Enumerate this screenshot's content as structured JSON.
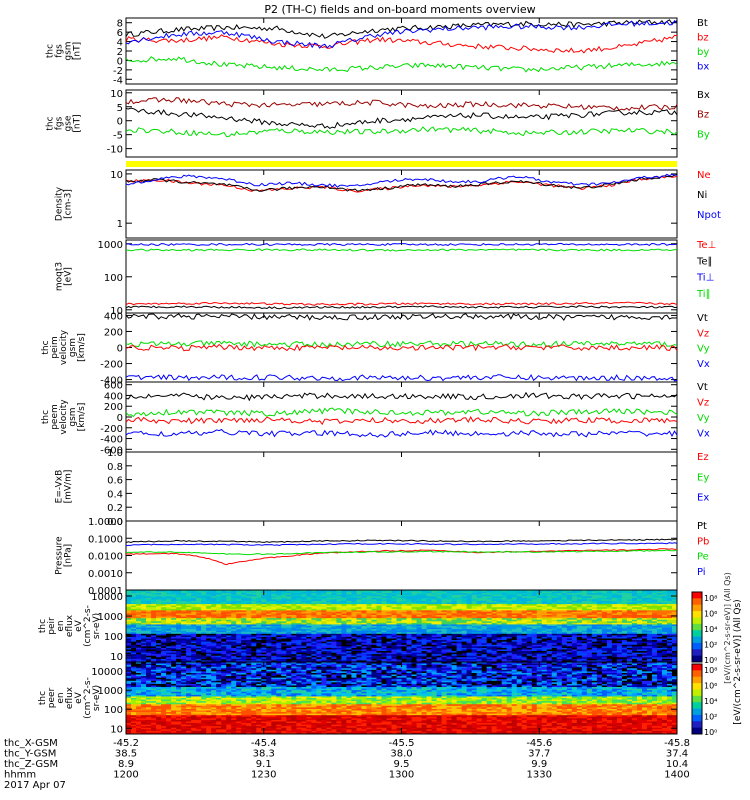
{
  "title": "P2 (TH-C) fields and on-board moments overview",
  "colors": {
    "black": "#000000",
    "red": "#ff0000",
    "green": "#00dd00",
    "blue": "#0000ff",
    "darkred": "#990000",
    "yellow": "#ffff00"
  },
  "chart_data": [
    {
      "type": "line",
      "ylabel": [
        "thc",
        "fgs",
        "gsm",
        "[nT]"
      ],
      "ylim": [
        -5,
        9
      ],
      "ticks": [
        "8",
        "6",
        "4",
        "2",
        "0",
        "-2",
        "-4"
      ],
      "tick_values": [
        8,
        6,
        4,
        2,
        0,
        -2,
        -4
      ],
      "legend": [
        "Bt",
        "bz",
        "by",
        "bx"
      ],
      "legend_colors": [
        "black",
        "red",
        "green",
        "blue"
      ],
      "series": [
        {
          "color": "black",
          "values": [
            5.5,
            6.5,
            7,
            6.8,
            5,
            6.5,
            7,
            7.5,
            7.8,
            7.6,
            8,
            8.2
          ]
        },
        {
          "color": "red",
          "values": [
            4.5,
            4.2,
            5,
            3.5,
            3,
            4.5,
            3.8,
            3,
            2.5,
            2,
            3,
            5
          ]
        },
        {
          "color": "green",
          "values": [
            0,
            0.5,
            -1,
            -1.5,
            -2,
            -1.5,
            -1,
            -1.5,
            -2,
            -1.5,
            -1,
            -0.5
          ]
        },
        {
          "color": "blue",
          "values": [
            4,
            5.5,
            6,
            4,
            3,
            5.5,
            6.5,
            7,
            7.2,
            7,
            7.8,
            8
          ]
        }
      ]
    },
    {
      "type": "line",
      "ylabel": [
        "thc",
        "fgs",
        "gse",
        "[nT]"
      ],
      "ylim": [
        -13,
        11
      ],
      "ticks": [
        "10",
        "5",
        "0",
        "-5",
        "-10"
      ],
      "tick_values": [
        10,
        5,
        0,
        -5,
        -10
      ],
      "legend": [
        "Bx",
        "Bz",
        "By"
      ],
      "legend_colors": [
        "black",
        "darkred",
        "green"
      ],
      "series": [
        {
          "color": "black",
          "values": [
            4,
            2.5,
            1,
            -1,
            -2,
            0,
            1,
            2,
            1,
            2,
            3,
            3
          ]
        },
        {
          "color": "darkred",
          "values": [
            7,
            7.5,
            6,
            5.5,
            6,
            6.5,
            5,
            6,
            5.5,
            5,
            4.5,
            5
          ]
        },
        {
          "color": "green",
          "values": [
            -3,
            -4,
            -5,
            -3.5,
            -4,
            -4,
            -3,
            -3.5,
            -4.5,
            -4,
            -3.5,
            -4
          ]
        }
      ]
    },
    {
      "type": "line",
      "scale": "log",
      "ylabel": [
        "Density",
        "[cm-3]"
      ],
      "ylim": [
        0.5,
        12
      ],
      "ticks": [
        "10",
        "1"
      ],
      "tick_values": [
        10,
        1
      ],
      "legend": [
        "Ne",
        "Ni",
        "Npot"
      ],
      "legend_colors": [
        "red",
        "black",
        "blue"
      ],
      "series": [
        {
          "color": "red",
          "values": [
            7,
            7.5,
            6.5,
            6,
            4.5,
            5,
            5.5,
            4.5,
            5,
            6,
            5.5,
            6,
            7,
            6,
            5,
            6,
            8,
            9
          ]
        },
        {
          "color": "black",
          "values": [
            7,
            7.6,
            6.6,
            6.1,
            4.6,
            5.1,
            5.6,
            4.6,
            5.1,
            6.1,
            5.6,
            6.1,
            7.1,
            6.1,
            5.1,
            6.1,
            8.1,
            9.1
          ]
        },
        {
          "color": "blue",
          "values": [
            6,
            8,
            9,
            8,
            6,
            6.5,
            6,
            5.5,
            7,
            8,
            7,
            7,
            9,
            7,
            6,
            6.5,
            8.5,
            9.5
          ]
        }
      ]
    },
    {
      "type": "line",
      "scale": "log",
      "ylabel": [
        "moqt3",
        "[eV]"
      ],
      "ylim": [
        8,
        1300
      ],
      "ticks": [
        "1000",
        "100",
        "10"
      ],
      "tick_values": [
        1000,
        100,
        10
      ],
      "legend": [
        "Te⊥",
        "Te∥",
        "Ti⊥",
        "Ti∥"
      ],
      "legend_colors": [
        "red",
        "black",
        "blue",
        "green"
      ],
      "series": [
        {
          "color": "blue",
          "values": [
            950,
            950,
            960,
            950,
            950,
            955,
            950,
            950,
            960,
            955,
            950,
            955
          ]
        },
        {
          "color": "green",
          "values": [
            650,
            640,
            650,
            660,
            650,
            640,
            650,
            655,
            650,
            645,
            650,
            650
          ]
        },
        {
          "color": "red",
          "values": [
            15,
            15.5,
            16,
            15,
            14.5,
            15,
            15.5,
            15,
            15,
            15.5,
            16,
            15
          ]
        },
        {
          "color": "black",
          "values": [
            12,
            12.5,
            12,
            11.5,
            12,
            12,
            12.5,
            12,
            12,
            12.5,
            12,
            12
          ]
        }
      ]
    },
    {
      "type": "line",
      "ylabel": [
        "thc",
        "peim",
        "velocity",
        "gsm",
        "[km/s]"
      ],
      "ylim": [
        -430,
        430
      ],
      "ticks": [
        "400",
        "200",
        "0",
        "-200",
        "-400"
      ],
      "tick_values": [
        400,
        200,
        0,
        -200,
        -400
      ],
      "legend": [
        "Vt",
        "Vz",
        "Vy",
        "Vx"
      ],
      "legend_colors": [
        "black",
        "red",
        "green",
        "blue"
      ],
      "series": [
        {
          "color": "black",
          "values": [
            380,
            390,
            385,
            380,
            375,
            380,
            385,
            390,
            380,
            375,
            380,
            385
          ]
        },
        {
          "color": "green",
          "values": [
            40,
            45,
            50,
            40,
            35,
            45,
            50,
            45,
            40,
            45,
            50,
            40
          ]
        },
        {
          "color": "red",
          "values": [
            0,
            -10,
            5,
            -5,
            0,
            -10,
            -5,
            0,
            5,
            -5,
            0,
            -5
          ]
        },
        {
          "color": "blue",
          "values": [
            -370,
            -380,
            -375,
            -370,
            -380,
            -375,
            -380,
            -370,
            -375,
            -380,
            -375,
            -385
          ]
        }
      ]
    },
    {
      "type": "line",
      "ylabel": [
        "thc",
        "peem",
        "velocity",
        "gsm",
        "[km/s]"
      ],
      "ylim": [
        -650,
        650
      ],
      "ticks": [
        "600",
        "400",
        "200",
        "0",
        "-200",
        "-400",
        "-600"
      ],
      "tick_values": [
        600,
        400,
        200,
        0,
        -200,
        -400,
        -600
      ],
      "legend": [
        "Vt",
        "Vz",
        "Vy",
        "Vx"
      ],
      "legend_colors": [
        "black",
        "red",
        "green",
        "blue"
      ],
      "series": [
        {
          "color": "black",
          "values": [
            380,
            400,
            350,
            380,
            400,
            380,
            390,
            370,
            400,
            380,
            390,
            380
          ]
        },
        {
          "color": "green",
          "values": [
            50,
            100,
            80,
            60,
            120,
            90,
            80,
            100,
            70,
            90,
            110,
            80
          ]
        },
        {
          "color": "red",
          "values": [
            -50,
            -80,
            -60,
            -40,
            -90,
            -60,
            -70,
            -50,
            -80,
            -60,
            -70,
            -60
          ]
        },
        {
          "color": "blue",
          "values": [
            -300,
            -320,
            -280,
            -310,
            -300,
            -330,
            -290,
            -310,
            -300,
            -320,
            -300,
            -310
          ]
        }
      ]
    },
    {
      "type": "line",
      "ylabel": [
        "E=-VxB",
        "[mV/m]"
      ],
      "ylim": [
        0,
        1
      ],
      "ticks": [
        "1.0",
        "0.8",
        "0.6",
        "0.4",
        "0.2",
        "0.0"
      ],
      "tick_values": [
        1,
        0.8,
        0.6,
        0.4,
        0.2,
        0
      ],
      "legend": [
        "Ez",
        "Ey",
        "Ex"
      ],
      "legend_colors": [
        "red",
        "green",
        "blue"
      ],
      "series": []
    },
    {
      "type": "line",
      "scale": "log",
      "ylabel": [
        "Pressure",
        "[nPa]"
      ],
      "ylim": [
        0.0001,
        1
      ],
      "ticks": [
        "1.0000",
        "0.1000",
        "0.0100",
        "0.0010",
        "0.0001"
      ],
      "tick_values": [
        1,
        0.1,
        0.01,
        0.001,
        0.0001
      ],
      "legend": [
        "Pt",
        "Pb",
        "Pe",
        "Pi"
      ],
      "legend_colors": [
        "black",
        "red",
        "green",
        "blue"
      ],
      "series": [
        {
          "color": "black",
          "values": [
            0.06,
            0.07,
            0.065,
            0.06,
            0.07,
            0.075,
            0.07,
            0.065,
            0.07,
            0.075,
            0.08,
            0.085
          ]
        },
        {
          "color": "red",
          "values": [
            0.012,
            0.013,
            0.003,
            0.008,
            0.014,
            0.018,
            0.02,
            0.015,
            0.017,
            0.019,
            0.021,
            0.024
          ]
        },
        {
          "color": "green",
          "values": [
            0.015,
            0.016,
            0.012,
            0.012,
            0.015,
            0.016,
            0.017,
            0.016,
            0.016,
            0.017,
            0.018,
            0.02
          ]
        },
        {
          "color": "blue",
          "values": [
            0.04,
            0.045,
            0.043,
            0.04,
            0.045,
            0.048,
            0.046,
            0.044,
            0.046,
            0.048,
            0.05,
            0.052
          ]
        }
      ]
    },
    {
      "type": "heatmap",
      "scale": "log",
      "ylabel": [
        "thc",
        "peir",
        "en",
        "eflux",
        "eV",
        "(cm^2-s-",
        "sr-eV)"
      ],
      "ylim": [
        5,
        20000
      ],
      "ticks": [
        "10000",
        "1000",
        "100",
        "10"
      ],
      "tick_values": [
        10000,
        1000,
        100,
        10
      ]
    },
    {
      "type": "heatmap",
      "scale": "log",
      "ylabel": [
        "thc",
        "peer",
        "en",
        "eflux",
        "eV",
        "(cm^2-s-",
        "sr-eV)"
      ],
      "ylim": [
        5,
        30000
      ],
      "ticks": [
        "10000",
        "1000",
        "100",
        "10"
      ],
      "tick_values": [
        10000,
        1000,
        100,
        10
      ]
    }
  ],
  "colorbar": {
    "label": "[eV/(cm^2-s-sr-eV)] (All Qs)",
    "upper_ticks": [
      "10⁸",
      "10⁶",
      "10⁴",
      "10²",
      "10⁰"
    ],
    "lower_ticks": [
      "10⁸",
      "10⁶",
      "10⁴",
      "10²",
      "10⁰"
    ],
    "overlay_label": "[eV/(cm^2-s-sr-eV)] (All Qs)"
  },
  "time_axis": {
    "rows": [
      {
        "label": "thc_X-GSM",
        "values": [
          "-45.2",
          "-45.4",
          "-45.5",
          "-45.6",
          "-45.8"
        ]
      },
      {
        "label": "thc_Y-GSM",
        "values": [
          "38.5",
          "38.3",
          "38.0",
          "37.7",
          "37.4"
        ]
      },
      {
        "label": "thc_Z-GSM",
        "values": [
          "8.9",
          "9.1",
          "9.5",
          "9.9",
          "10.4"
        ]
      },
      {
        "label": "hhmm",
        "values": [
          "1200",
          "1230",
          "1300",
          "1330",
          "1400"
        ]
      }
    ],
    "date": "2017 Apr 07"
  }
}
